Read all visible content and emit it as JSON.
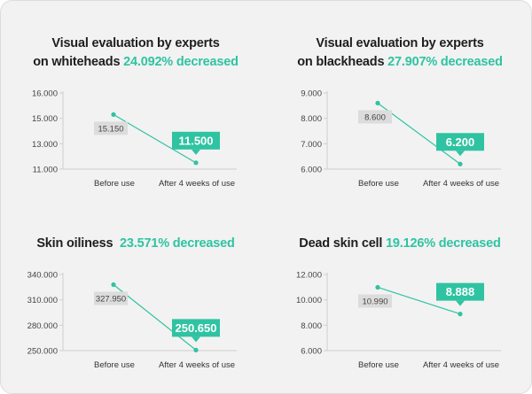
{
  "chart_data": [
    {
      "type": "line",
      "title": "Visual evaluation by experts",
      "title_line2": "on whiteheads",
      "highlight": "24.092% decreased",
      "categories": [
        "Before use",
        "After 4 weeks of use"
      ],
      "values": [
        15.15,
        11.5
      ],
      "value_labels": [
        "15.150",
        "11.500"
      ],
      "yticks": [
        "16.000",
        "15.000",
        "13.000",
        "11.000"
      ],
      "ylim": [
        11.0,
        16.0
      ]
    },
    {
      "type": "line",
      "title": "Visual evaluation by experts",
      "title_line2": "on blackheads",
      "highlight": "27.907% decreased",
      "categories": [
        "Before use",
        "After 4 weeks of use"
      ],
      "values": [
        8.6,
        6.2
      ],
      "value_labels": [
        "8.600",
        "6.200"
      ],
      "yticks": [
        "9.000",
        "8.000",
        "7.000",
        "6.000"
      ],
      "ylim": [
        6.0,
        9.0
      ]
    },
    {
      "type": "line",
      "title": "Skin oiliness",
      "title_line2": "",
      "highlight": "23.571% decreased",
      "categories": [
        "Before use",
        "After 4 weeks of use"
      ],
      "values": [
        327.95,
        250.65
      ],
      "value_labels": [
        "327.950",
        "250.650"
      ],
      "yticks": [
        "340.000",
        "310.000",
        "280.000",
        "250.000"
      ],
      "ylim": [
        250.0,
        340.0
      ]
    },
    {
      "type": "line",
      "title": "Dead skin cell",
      "title_line2": "",
      "highlight": "19.126% decreased",
      "categories": [
        "Before use",
        "After 4 weeks of use"
      ],
      "values": [
        10.99,
        8.888
      ],
      "value_labels": [
        "10.990",
        "8.888"
      ],
      "yticks": [
        "12.000",
        "10.000",
        "8.000",
        "6.000"
      ],
      "ylim": [
        6.0,
        12.0
      ]
    }
  ],
  "colors": {
    "accent": "#2fc3a2",
    "label_box": "#dcdcdc",
    "axis": "#cfcfcf"
  }
}
